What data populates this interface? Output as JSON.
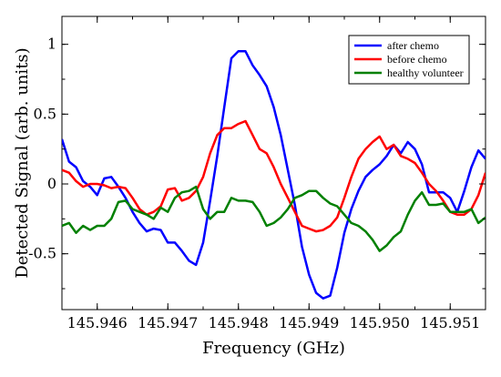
{
  "chart_data": {
    "type": "line",
    "xlabel": "Frequency (GHz)",
    "ylabel": "Detected Signal (arb. units)",
    "xlim": [
      145.9455,
      145.9515
    ],
    "ylim": [
      -0.9,
      1.2
    ],
    "x_ticks": [
      145.946,
      145.947,
      145.948,
      145.949,
      145.95,
      145.951
    ],
    "x_tick_labels": [
      "145.946",
      "145.947",
      "145.948",
      "145.949",
      "145.950",
      "145.951"
    ],
    "y_ticks": [
      -0.5,
      0,
      0.5,
      1
    ],
    "y_tick_labels": [
      "-0.5",
      "0",
      "0.5",
      "1"
    ],
    "grid": false,
    "legend_position": "top-right",
    "series": [
      {
        "name": "after chemo",
        "color": "#0000ff",
        "x": [
          145.9455,
          145.9456,
          145.9457,
          145.9458,
          145.9459,
          145.946,
          145.9461,
          145.9462,
          145.9463,
          145.9464,
          145.9465,
          145.9466,
          145.9467,
          145.9468,
          145.9469,
          145.947,
          145.9471,
          145.9472,
          145.9473,
          145.9474,
          145.9475,
          145.9476,
          145.9477,
          145.9478,
          145.9479,
          145.948,
          145.9481,
          145.9482,
          145.9483,
          145.9484,
          145.9485,
          145.9486,
          145.9487,
          145.9488,
          145.9489,
          145.949,
          145.9491,
          145.9492,
          145.9493,
          145.9494,
          145.9495,
          145.9496,
          145.9497,
          145.9498,
          145.9499,
          145.95,
          145.9501,
          145.9502,
          145.9503,
          145.9504,
          145.9505,
          145.9506,
          145.9507,
          145.9508,
          145.9509,
          145.951,
          145.9511,
          145.9512,
          145.9513,
          145.9514,
          145.9515
        ],
        "y": [
          0.32,
          0.16,
          0.12,
          0.02,
          -0.02,
          -0.08,
          0.04,
          0.05,
          -0.02,
          -0.1,
          -0.2,
          -0.28,
          -0.34,
          -0.32,
          -0.33,
          -0.42,
          -0.42,
          -0.48,
          -0.55,
          -0.58,
          -0.42,
          -0.12,
          0.2,
          0.55,
          0.9,
          0.95,
          0.95,
          0.85,
          0.78,
          0.7,
          0.55,
          0.35,
          0.1,
          -0.15,
          -0.45,
          -0.65,
          -0.78,
          -0.82,
          -0.8,
          -0.6,
          -0.35,
          -0.18,
          -0.05,
          0.05,
          0.1,
          0.14,
          0.2,
          0.28,
          0.22,
          0.3,
          0.25,
          0.14,
          -0.06,
          -0.06,
          -0.06,
          -0.1,
          -0.2,
          -0.05,
          0.12,
          0.24,
          0.18
        ]
      },
      {
        "name": "before chemo",
        "color": "#ff0000",
        "x": [
          145.9455,
          145.9456,
          145.9457,
          145.9458,
          145.9459,
          145.946,
          145.9461,
          145.9462,
          145.9463,
          145.9464,
          145.9465,
          145.9466,
          145.9467,
          145.9468,
          145.9469,
          145.947,
          145.9471,
          145.9472,
          145.9473,
          145.9474,
          145.9475,
          145.9476,
          145.9477,
          145.9478,
          145.9479,
          145.948,
          145.9481,
          145.9482,
          145.9483,
          145.9484,
          145.9485,
          145.9486,
          145.9487,
          145.9488,
          145.9489,
          145.949,
          145.9491,
          145.9492,
          145.9493,
          145.9494,
          145.9495,
          145.9496,
          145.9497,
          145.9498,
          145.9499,
          145.95,
          145.9501,
          145.9502,
          145.9503,
          145.9504,
          145.9505,
          145.9506,
          145.9507,
          145.9508,
          145.9509,
          145.951,
          145.9511,
          145.9512,
          145.9513,
          145.9514,
          145.9515
        ],
        "y": [
          0.1,
          0.08,
          0.02,
          -0.02,
          0.0,
          0.0,
          -0.01,
          -0.03,
          -0.02,
          -0.03,
          -0.1,
          -0.18,
          -0.22,
          -0.2,
          -0.16,
          -0.04,
          -0.03,
          -0.12,
          -0.1,
          -0.05,
          0.05,
          0.22,
          0.35,
          0.4,
          0.4,
          0.43,
          0.45,
          0.35,
          0.25,
          0.22,
          0.12,
          0.0,
          -0.1,
          -0.2,
          -0.3,
          -0.32,
          -0.34,
          -0.33,
          -0.3,
          -0.24,
          -0.1,
          0.05,
          0.18,
          0.25,
          0.3,
          0.34,
          0.25,
          0.28,
          0.2,
          0.18,
          0.15,
          0.08,
          0.0,
          -0.05,
          -0.12,
          -0.2,
          -0.22,
          -0.22,
          -0.18,
          -0.08,
          0.08
        ]
      },
      {
        "name": "healthy volunteer",
        "color": "#008000",
        "x": [
          145.9455,
          145.9456,
          145.9457,
          145.9458,
          145.9459,
          145.946,
          145.9461,
          145.9462,
          145.9463,
          145.9464,
          145.9465,
          145.9466,
          145.9467,
          145.9468,
          145.9469,
          145.947,
          145.9471,
          145.9472,
          145.9473,
          145.9474,
          145.9475,
          145.9476,
          145.9477,
          145.9478,
          145.9479,
          145.948,
          145.9481,
          145.9482,
          145.9483,
          145.9484,
          145.9485,
          145.9486,
          145.9487,
          145.9488,
          145.9489,
          145.949,
          145.9491,
          145.9492,
          145.9493,
          145.9494,
          145.9495,
          145.9496,
          145.9497,
          145.9498,
          145.9499,
          145.95,
          145.9501,
          145.9502,
          145.9503,
          145.9504,
          145.9505,
          145.9506,
          145.9507,
          145.9508,
          145.9509,
          145.951,
          145.9511,
          145.9512,
          145.9513,
          145.9514,
          145.9515
        ],
        "y": [
          -0.3,
          -0.28,
          -0.35,
          -0.3,
          -0.33,
          -0.3,
          -0.3,
          -0.25,
          -0.13,
          -0.12,
          -0.18,
          -0.2,
          -0.22,
          -0.25,
          -0.17,
          -0.2,
          -0.1,
          -0.06,
          -0.05,
          -0.02,
          -0.18,
          -0.25,
          -0.2,
          -0.2,
          -0.1,
          -0.12,
          -0.12,
          -0.13,
          -0.2,
          -0.3,
          -0.28,
          -0.24,
          -0.18,
          -0.1,
          -0.08,
          -0.05,
          -0.05,
          -0.1,
          -0.14,
          -0.16,
          -0.22,
          -0.28,
          -0.3,
          -0.34,
          -0.4,
          -0.48,
          -0.44,
          -0.38,
          -0.34,
          -0.22,
          -0.12,
          -0.06,
          -0.15,
          -0.15,
          -0.14,
          -0.2,
          -0.2,
          -0.2,
          -0.18,
          -0.28,
          -0.24
        ]
      }
    ]
  }
}
